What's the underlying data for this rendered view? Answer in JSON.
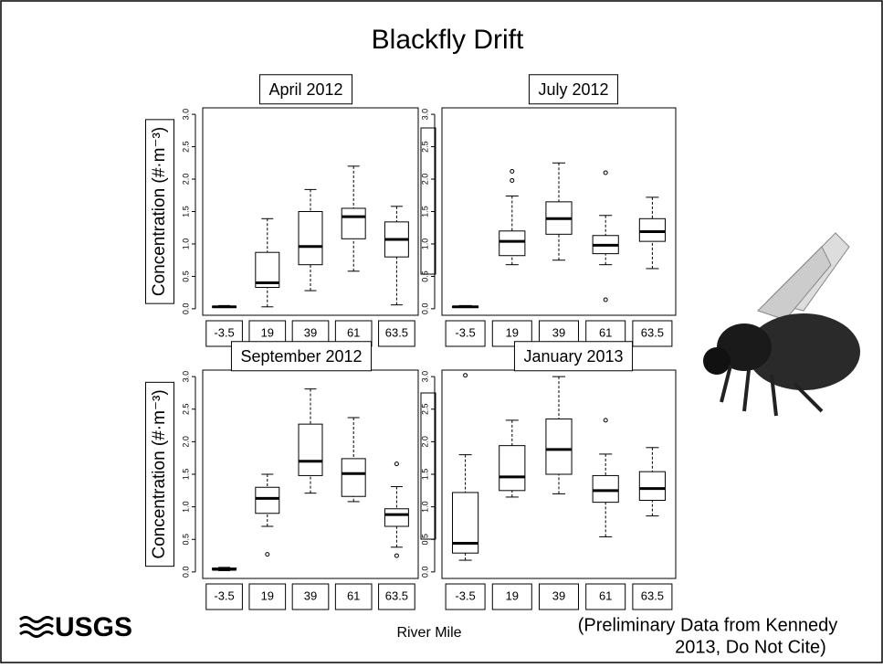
{
  "title": "Blackfly Drift",
  "x_label": "River Mile",
  "note_lines": [
    "(Preliminary Data from Kennedy",
    "2013, Do Not Cite)"
  ],
  "logo": "USGS",
  "chart_data": [
    {
      "type": "box",
      "title": "April 2012",
      "y_label": "Concentration (#·m⁻³)",
      "categories": [
        "-3.5",
        "19",
        "39",
        "61",
        "63.5"
      ],
      "boxes": [
        {
          "min": 0.02,
          "q1": 0.02,
          "median": 0.03,
          "q3": 0.04,
          "max": 0.05,
          "outliers": []
        },
        {
          "min": 0.03,
          "q1": 0.33,
          "median": 0.4,
          "q3": 0.87,
          "max": 1.39,
          "outliers": []
        },
        {
          "min": 0.28,
          "q1": 0.68,
          "median": 0.96,
          "q3": 1.5,
          "max": 1.84,
          "outliers": []
        },
        {
          "min": 0.58,
          "q1": 1.08,
          "median": 1.42,
          "q3": 1.55,
          "max": 2.2,
          "outliers": []
        },
        {
          "min": 0.06,
          "q1": 0.8,
          "median": 1.07,
          "q3": 1.34,
          "max": 1.58,
          "outliers": []
        }
      ],
      "ylim": [
        -0.1,
        3.1
      ],
      "yticks": [
        {
          "value": 0,
          "label": "0.0"
        },
        {
          "value": 0.5,
          "label": "0.5"
        },
        {
          "value": 1,
          "label": "1.0"
        },
        {
          "value": 1.5,
          "label": "1.5"
        },
        {
          "value": 2,
          "label": "2.0"
        },
        {
          "value": 2.5,
          "label": "2.5"
        },
        {
          "value": 3,
          "label": "3.0"
        }
      ]
    },
    {
      "type": "box",
      "title": "July 2012",
      "categories": [
        "-3.5",
        "19",
        "39",
        "61",
        "63.5"
      ],
      "boxes": [
        {
          "min": 0.02,
          "q1": 0.02,
          "median": 0.03,
          "q3": 0.04,
          "max": 0.05,
          "outliers": []
        },
        {
          "min": 0.68,
          "q1": 0.82,
          "median": 1.04,
          "q3": 1.2,
          "max": 1.74,
          "outliers": [
            1.98,
            2.12
          ]
        },
        {
          "min": 0.75,
          "q1": 1.15,
          "median": 1.39,
          "q3": 1.65,
          "max": 2.25,
          "outliers": []
        },
        {
          "min": 0.68,
          "q1": 0.85,
          "median": 0.98,
          "q3": 1.13,
          "max": 1.44,
          "outliers": [
            2.1,
            0.14
          ]
        },
        {
          "min": 0.62,
          "q1": 1.04,
          "median": 1.19,
          "q3": 1.39,
          "max": 1.72,
          "outliers": []
        }
      ],
      "ylim": [
        -0.1,
        3.1
      ],
      "yticks": [
        {
          "value": 0,
          "label": "0.0"
        },
        {
          "value": 0.5,
          "label": "0.5"
        },
        {
          "value": 1,
          "label": "1.0"
        },
        {
          "value": 1.5,
          "label": "1.5"
        },
        {
          "value": 2,
          "label": "2.0"
        },
        {
          "value": 2.5,
          "label": "2.5"
        },
        {
          "value": 3,
          "label": "3.0"
        }
      ]
    },
    {
      "type": "box",
      "title": "September 2012",
      "y_label": "Concentration (#·m⁻³)",
      "categories": [
        "-3.5",
        "19",
        "39",
        "61",
        "63.5"
      ],
      "boxes": [
        {
          "min": 0.02,
          "q1": 0.03,
          "median": 0.04,
          "q3": 0.06,
          "max": 0.07,
          "outliers": []
        },
        {
          "min": 0.7,
          "q1": 0.9,
          "median": 1.13,
          "q3": 1.3,
          "max": 1.5,
          "outliers": [
            0.27
          ]
        },
        {
          "min": 1.21,
          "q1": 1.48,
          "median": 1.7,
          "q3": 2.27,
          "max": 2.81,
          "outliers": []
        },
        {
          "min": 1.08,
          "q1": 1.16,
          "median": 1.51,
          "q3": 1.74,
          "max": 2.37,
          "outliers": []
        },
        {
          "min": 0.38,
          "q1": 0.7,
          "median": 0.88,
          "q3": 0.97,
          "max": 1.31,
          "outliers": [
            1.66,
            0.25
          ]
        }
      ],
      "ylim": [
        -0.1,
        3.1
      ],
      "yticks": [
        {
          "value": 0,
          "label": "0.0"
        },
        {
          "value": 0.5,
          "label": "0.5"
        },
        {
          "value": 1,
          "label": "1.0"
        },
        {
          "value": 1.5,
          "label": "1.5"
        },
        {
          "value": 2,
          "label": "2.0"
        },
        {
          "value": 2.5,
          "label": "2.5"
        },
        {
          "value": 3,
          "label": "3.0"
        }
      ]
    },
    {
      "type": "box",
      "title": "January 2013",
      "categories": [
        "-3.5",
        "19",
        "39",
        "61",
        "63.5"
      ],
      "boxes": [
        {
          "min": 0.18,
          "q1": 0.29,
          "median": 0.44,
          "q3": 1.22,
          "max": 1.8,
          "outliers": [
            3.02
          ]
        },
        {
          "min": 1.15,
          "q1": 1.25,
          "median": 1.46,
          "q3": 1.94,
          "max": 2.33,
          "outliers": []
        },
        {
          "min": 1.2,
          "q1": 1.5,
          "median": 1.88,
          "q3": 2.35,
          "max": 3.0,
          "outliers": []
        },
        {
          "min": 0.54,
          "q1": 1.07,
          "median": 1.25,
          "q3": 1.48,
          "max": 1.81,
          "outliers": [
            2.33
          ]
        },
        {
          "min": 0.86,
          "q1": 1.1,
          "median": 1.28,
          "q3": 1.54,
          "max": 1.91,
          "outliers": []
        }
      ],
      "ylim": [
        -0.1,
        3.1
      ],
      "yticks": [
        {
          "value": 0,
          "label": "0.0"
        },
        {
          "value": 0.5,
          "label": "0.5"
        },
        {
          "value": 1,
          "label": "1.0"
        },
        {
          "value": 1.5,
          "label": "1.5"
        },
        {
          "value": 2,
          "label": "2.0"
        },
        {
          "value": 2.5,
          "label": "2.5"
        },
        {
          "value": 3,
          "label": "3.0"
        }
      ]
    }
  ]
}
